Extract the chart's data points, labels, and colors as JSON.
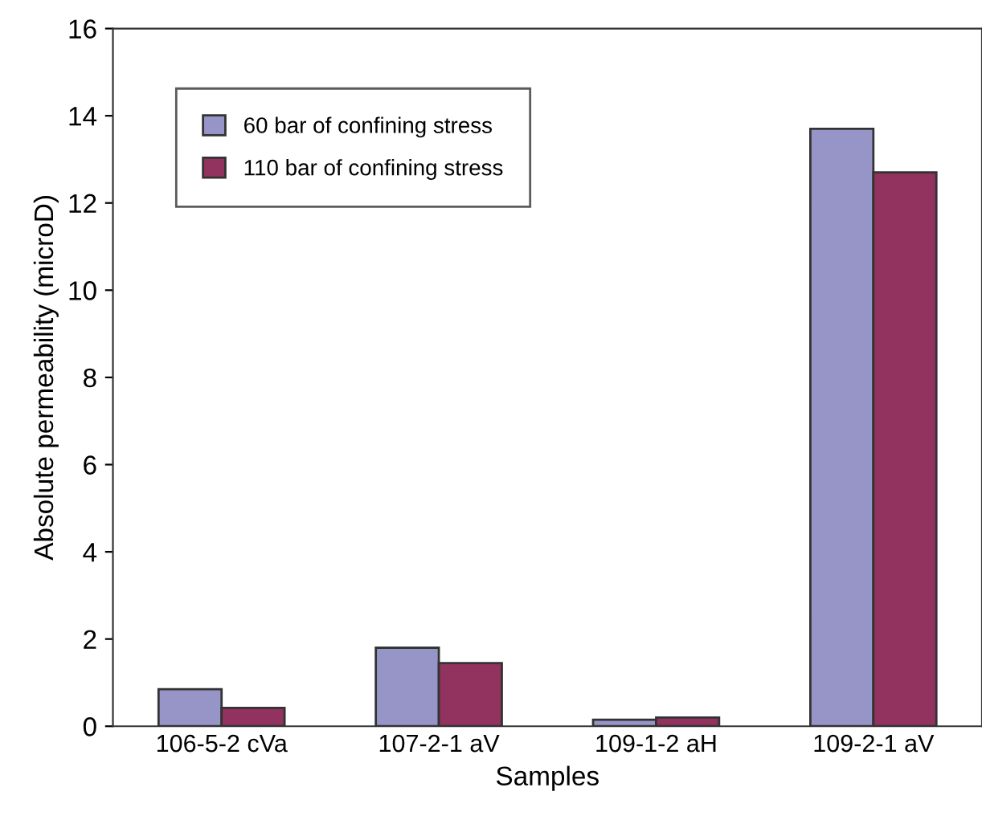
{
  "chart_data": {
    "type": "bar",
    "xlabel": "Samples",
    "ylabel": "Absolute permeability (microD)",
    "categories": [
      "106-5-2 cVa",
      "107-2-1 aV",
      "109-1-2 aH",
      "109-2-1 aV"
    ],
    "series": [
      {
        "name": "60 bar of confining stress",
        "color": "#9795c8",
        "values": [
          0.85,
          1.8,
          0.15,
          13.7
        ]
      },
      {
        "name": "110 bar of confining stress",
        "color": "#92325e",
        "values": [
          0.42,
          1.45,
          0.2,
          12.7
        ]
      }
    ],
    "ylim": [
      0,
      16
    ],
    "yticks": [
      0,
      2,
      4,
      6,
      8,
      10,
      12,
      14,
      16
    ],
    "grid": false,
    "legend": "top left"
  }
}
